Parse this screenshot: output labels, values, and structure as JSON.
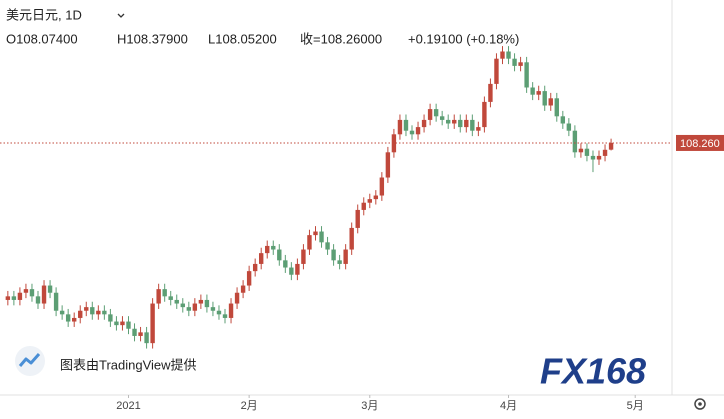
{
  "chart_data": {
    "type": "candlestick",
    "title": "美元日元, 1D",
    "ohlc_labels": [
      "O108.07400",
      "H108.37900",
      "L108.05200",
      "收=108.26000",
      "+0.19100 (+0.18%)"
    ],
    "open": [
      103.9,
      104.0,
      103.9,
      104.1,
      104.2,
      104.0,
      103.8,
      104.3,
      104.1,
      103.6,
      103.5,
      103.3,
      103.4,
      103.6,
      103.7,
      103.5,
      103.6,
      103.5,
      103.3,
      103.2,
      103.3,
      103.1,
      102.9,
      103.0,
      102.7,
      103.8,
      104.2,
      104.0,
      103.9,
      103.8,
      103.7,
      103.6,
      103.8,
      103.9,
      103.7,
      103.6,
      103.5,
      103.4,
      103.8,
      104.1,
      104.3,
      104.7,
      104.9,
      105.2,
      105.4,
      105.3,
      105.0,
      104.8,
      104.6,
      104.9,
      105.3,
      105.7,
      105.8,
      105.5,
      105.3,
      105.0,
      104.9,
      105.3,
      105.9,
      106.4,
      106.6,
      106.7,
      106.8,
      107.3,
      108.0,
      108.5,
      108.9,
      108.6,
      108.5,
      108.7,
      108.9,
      109.2,
      109.0,
      108.9,
      108.8,
      108.9,
      108.7,
      108.9,
      108.6,
      108.7,
      109.4,
      109.9,
      110.6,
      110.8,
      110.6,
      110.4,
      110.5,
      109.8,
      109.6,
      109.7,
      109.3,
      109.5,
      109.0,
      108.8,
      108.6,
      108.0,
      108.1,
      107.9,
      107.8,
      107.9,
      108.074
    ],
    "high": [
      104.15,
      104.15,
      104.25,
      104.35,
      104.35,
      104.15,
      104.45,
      104.45,
      104.25,
      103.75,
      103.65,
      103.55,
      103.75,
      103.85,
      103.85,
      103.75,
      103.75,
      103.65,
      103.45,
      103.45,
      103.45,
      103.25,
      103.15,
      103.15,
      103.95,
      104.35,
      104.35,
      104.15,
      104.05,
      103.95,
      103.85,
      103.95,
      104.05,
      104.05,
      103.85,
      103.75,
      103.65,
      103.95,
      104.25,
      104.45,
      104.85,
      105.05,
      105.35,
      105.55,
      105.55,
      105.45,
      105.15,
      104.95,
      105.05,
      105.45,
      105.85,
      105.95,
      105.95,
      105.65,
      105.45,
      105.15,
      105.45,
      106.05,
      106.55,
      106.75,
      106.85,
      106.95,
      107.45,
      108.15,
      108.65,
      109.05,
      109.05,
      108.75,
      108.85,
      109.05,
      109.35,
      109.35,
      109.15,
      109.05,
      109.05,
      109.05,
      109.05,
      109.05,
      108.85,
      109.55,
      110.05,
      110.75,
      110.95,
      110.95,
      110.75,
      110.65,
      110.65,
      109.95,
      109.85,
      109.85,
      109.65,
      109.65,
      109.15,
      108.95,
      108.75,
      108.25,
      108.25,
      108.05,
      108.05,
      108.22,
      108.379
    ],
    "low": [
      103.75,
      103.75,
      103.75,
      103.95,
      103.85,
      103.65,
      103.65,
      103.95,
      103.45,
      103.35,
      103.15,
      103.15,
      103.25,
      103.45,
      103.35,
      103.35,
      103.35,
      103.15,
      103.05,
      103.05,
      102.95,
      102.75,
      102.75,
      102.55,
      102.55,
      103.65,
      103.85,
      103.75,
      103.65,
      103.55,
      103.45,
      103.45,
      103.65,
      103.55,
      103.45,
      103.35,
      103.25,
      103.25,
      103.65,
      103.95,
      104.15,
      104.55,
      104.75,
      105.05,
      105.15,
      104.85,
      104.65,
      104.45,
      104.45,
      104.75,
      105.15,
      105.55,
      105.35,
      105.15,
      104.85,
      104.75,
      104.75,
      105.15,
      105.75,
      106.25,
      106.45,
      106.55,
      106.65,
      107.15,
      107.85,
      108.35,
      108.45,
      108.35,
      108.35,
      108.55,
      108.75,
      108.85,
      108.75,
      108.65,
      108.65,
      108.55,
      108.55,
      108.45,
      108.45,
      108.55,
      109.25,
      109.75,
      110.45,
      110.45,
      110.25,
      110.25,
      109.65,
      109.45,
      109.45,
      109.15,
      109.15,
      108.85,
      108.65,
      108.45,
      107.85,
      107.85,
      107.75,
      107.45,
      107.65,
      107.75,
      108.052
    ],
    "close": [
      104.0,
      103.9,
      104.1,
      104.2,
      104.0,
      103.8,
      104.3,
      104.1,
      103.6,
      103.5,
      103.3,
      103.4,
      103.6,
      103.7,
      103.5,
      103.6,
      103.5,
      103.3,
      103.2,
      103.3,
      103.1,
      102.9,
      103.0,
      102.7,
      103.8,
      104.2,
      104.0,
      103.9,
      103.8,
      103.7,
      103.6,
      103.8,
      103.9,
      103.7,
      103.6,
      103.5,
      103.4,
      103.8,
      104.1,
      104.3,
      104.7,
      104.9,
      105.2,
      105.4,
      105.3,
      105.0,
      104.8,
      104.6,
      104.9,
      105.3,
      105.7,
      105.8,
      105.5,
      105.3,
      105.0,
      104.9,
      105.3,
      105.9,
      106.4,
      106.6,
      106.7,
      106.8,
      107.3,
      108.0,
      108.5,
      108.9,
      108.6,
      108.5,
      108.7,
      108.9,
      109.2,
      109.0,
      108.9,
      108.8,
      108.9,
      108.7,
      108.9,
      108.6,
      108.7,
      109.4,
      109.9,
      110.6,
      110.8,
      110.6,
      110.4,
      110.5,
      109.8,
      109.6,
      109.7,
      109.3,
      109.5,
      109.0,
      108.8,
      108.6,
      108.0,
      108.1,
      107.9,
      107.8,
      107.9,
      108.07,
      108.26
    ],
    "up_color": "#c0483b",
    "down_color": "#5c9e74",
    "xlim": [
      -1.3,
      110.1
    ],
    "xticks": [
      {
        "value": 20,
        "label": "2021"
      },
      {
        "value": 40,
        "label": "2月"
      },
      {
        "value": 60,
        "label": "3月"
      },
      {
        "value": 83,
        "label": "4月"
      },
      {
        "value": 104,
        "label": "5月"
      }
    ],
    "ylim": [
      101.26,
      112.23
    ],
    "last_price": {
      "value": 108.26,
      "label": "108.260"
    },
    "credit": "图表由TradingView提供",
    "watermark": "FX168"
  }
}
